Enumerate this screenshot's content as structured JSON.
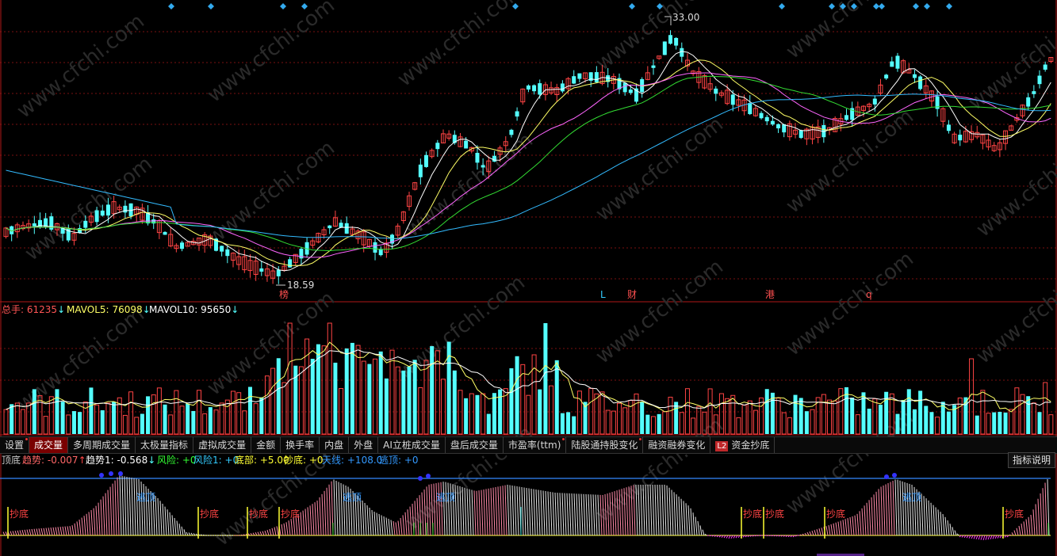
{
  "price_panel": {
    "high_label": "33.00",
    "low_label": "18.59",
    "events": [
      {
        "text": "榜",
        "color": "#ff5050"
      },
      {
        "text": "L",
        "color": "#33ccff"
      },
      {
        "text": "财",
        "color": "#ff5050"
      },
      {
        "text": "港",
        "color": "#ff5050"
      },
      {
        "text": "q",
        "color": "#ff5050"
      }
    ],
    "watermark": "www.cfchi.com",
    "colors": {
      "up": "#ff4444",
      "down": "#54ffff",
      "ma5": "#ffffff",
      "ma10": "#ffff66",
      "ma20": "#ff66ff",
      "ma30": "#33dd33",
      "ma60": "#33bbff",
      "grid": "#7a1010",
      "diamond": "#33aaee"
    }
  },
  "volume_panel": {
    "label": "总手:",
    "value": "61235",
    "mavol5_label": "MAVOL5:",
    "mavol5_value": "76098",
    "mavol10_label": "MAVOL10:",
    "mavol10_value": "95650",
    "arrow": "↓"
  },
  "tabs": [
    {
      "label": "设置",
      "dot": true
    },
    {
      "label": "成交量",
      "active": true
    },
    {
      "label": "多周期成交量"
    },
    {
      "label": "太极量指标"
    },
    {
      "label": "虚拟成交量"
    },
    {
      "label": "金额"
    },
    {
      "label": "换手率"
    },
    {
      "label": "内盘"
    },
    {
      "label": "外盘"
    },
    {
      "label": "AI立桩成交量"
    },
    {
      "label": "盘后成交量"
    },
    {
      "label": "市盈率(ttm)",
      "dot": true
    },
    {
      "label": "陆股通持股变化",
      "dot": true
    },
    {
      "label": "融资融券变化"
    },
    {
      "label": "资金抄底",
      "badge": "L2"
    }
  ],
  "indicator_panel": {
    "title": "顶底",
    "items": [
      {
        "label": "趋势:",
        "value": "-0.007",
        "arrow": "↑",
        "color": "#ff6666"
      },
      {
        "label": "趋势1:",
        "value": "-0.568",
        "arrow": "↓",
        "color": "#ffffff"
      },
      {
        "label": "风险:",
        "value": "+0",
        "color": "#33ff33"
      },
      {
        "label": "风险1:",
        "value": "+0",
        "color": "#33ccff"
      },
      {
        "label": "底部:",
        "value": "+5.00",
        "color": "#ffff33"
      },
      {
        "label": "抄底:",
        "value": "+0",
        "color": "#ffff33"
      },
      {
        "label": "天线:",
        "value": "+108.0",
        "color": "#3399ff"
      },
      {
        "label": "逃顶:",
        "value": "+0",
        "color": "#3399ff"
      }
    ],
    "help_button": "指标说明",
    "buy_label": "抄底",
    "sell_label": "逃顶"
  }
}
